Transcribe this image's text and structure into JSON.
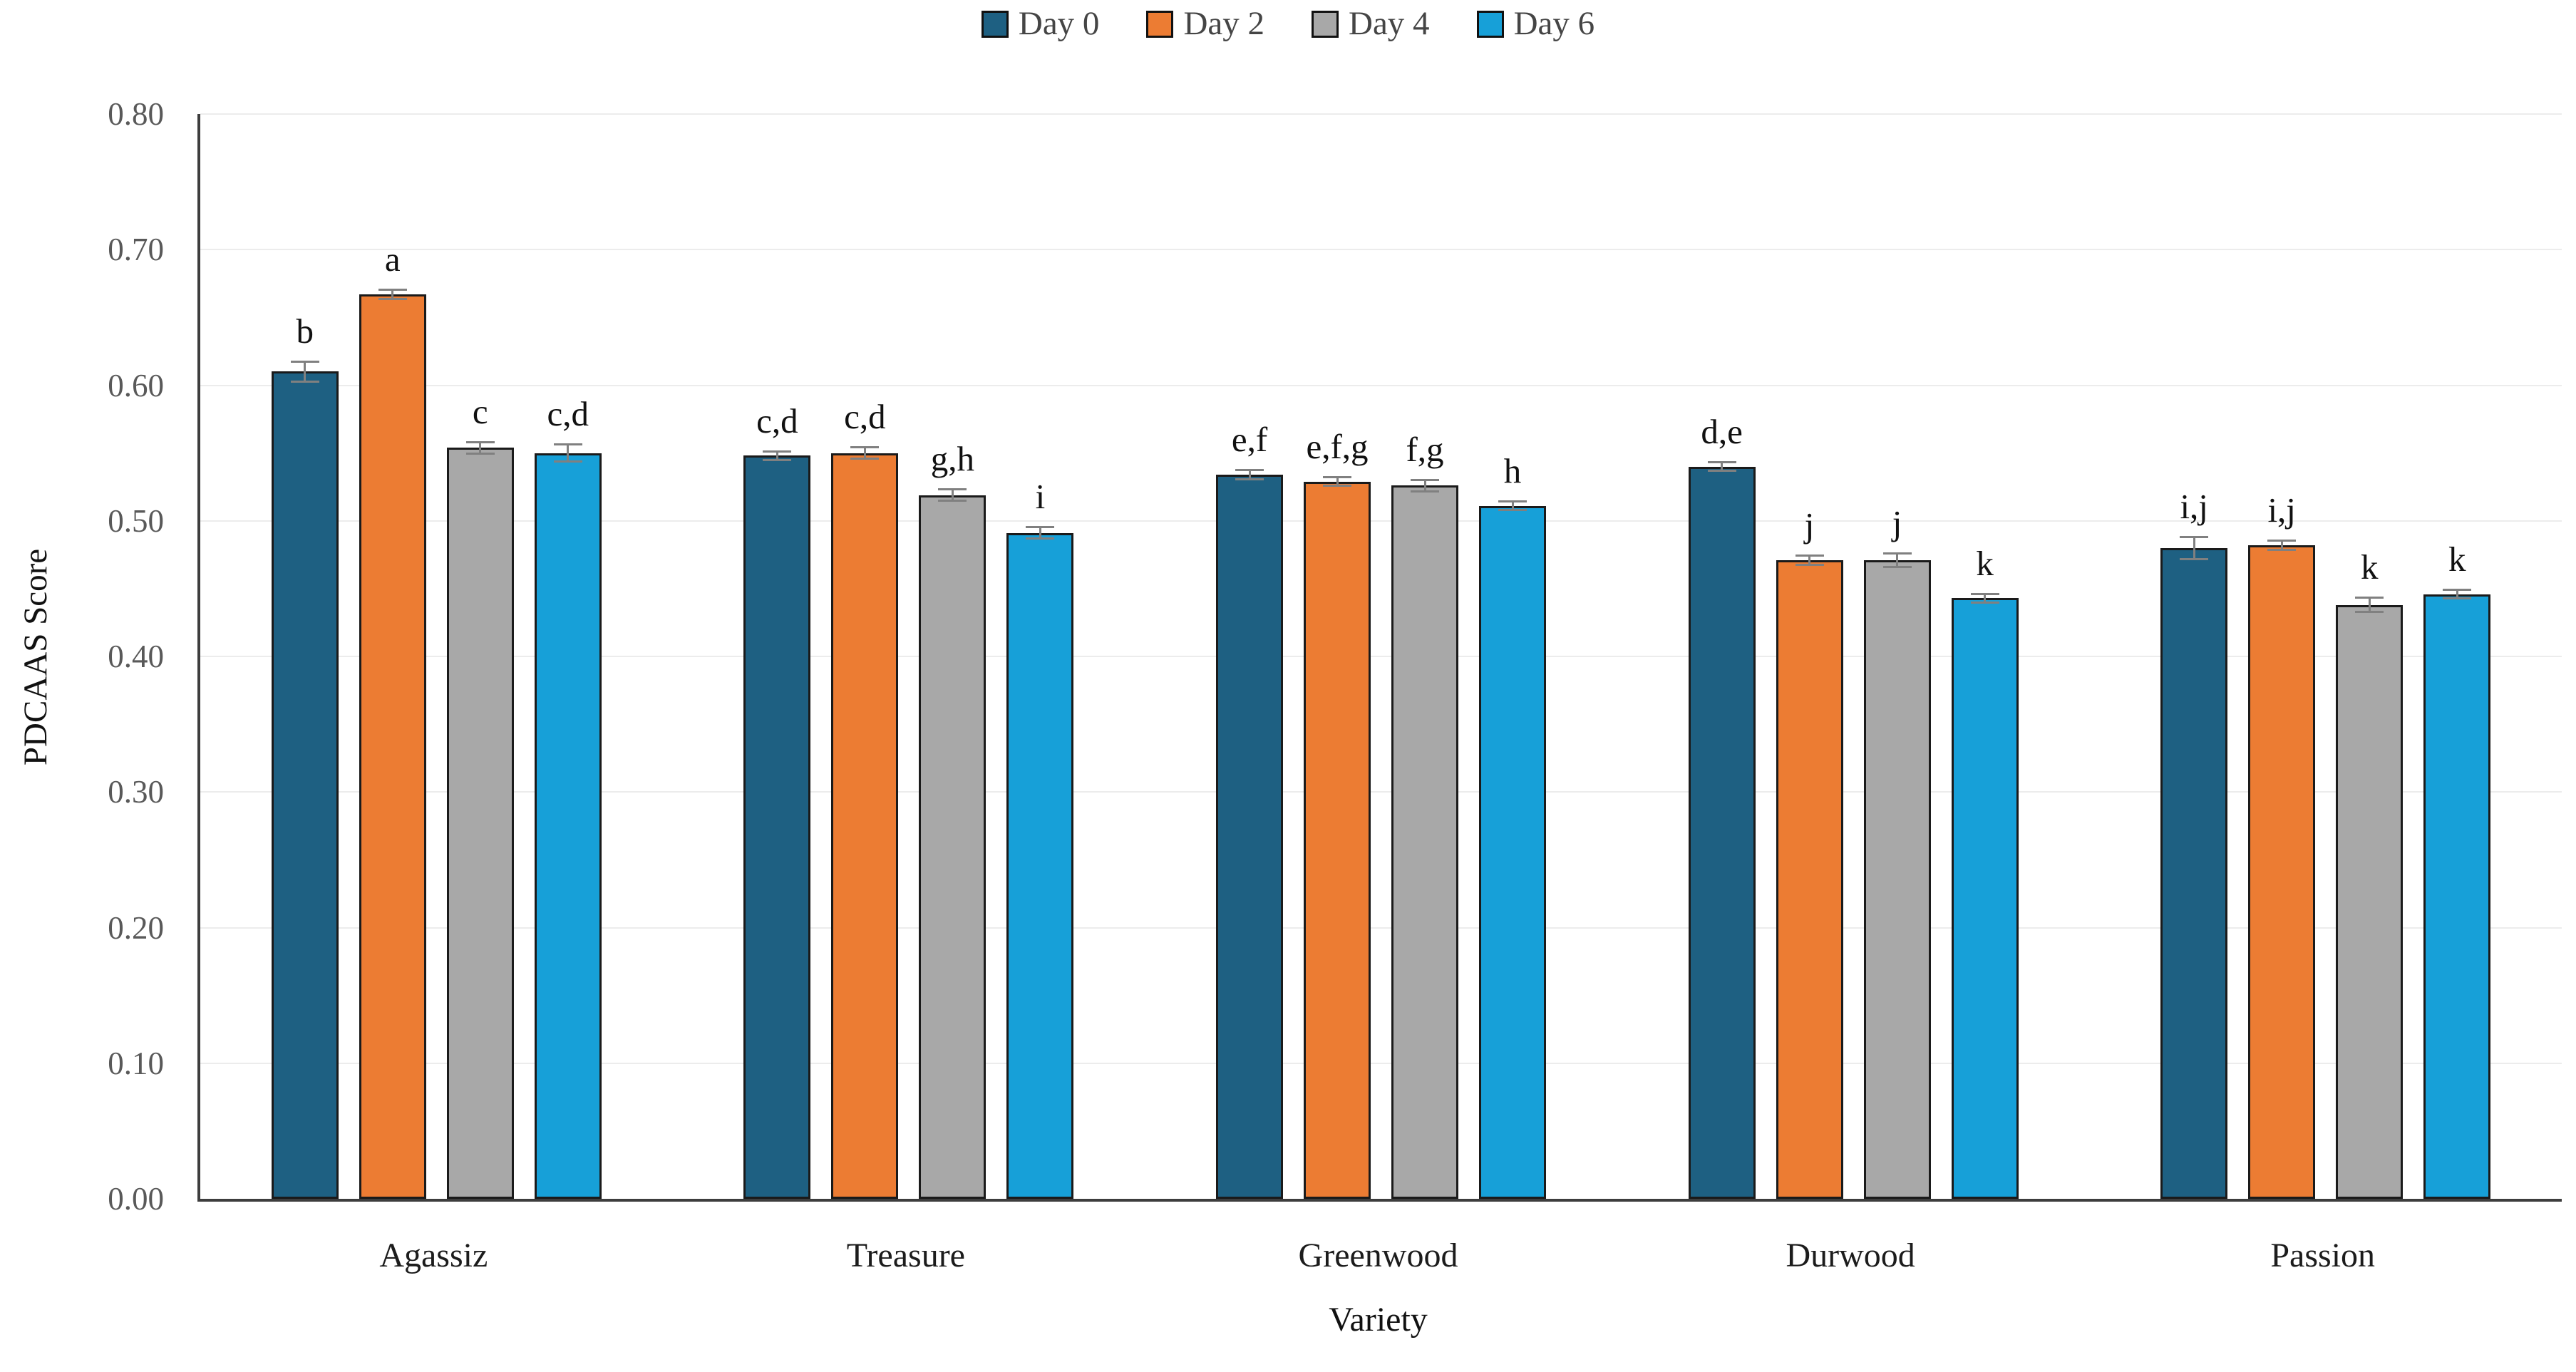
{
  "chart_data": {
    "type": "bar",
    "title": "",
    "xlabel": "Variety",
    "ylabel": "PDCAAS Score",
    "ylim": [
      0,
      0.8
    ],
    "ytick_labels": [
      "0.00",
      "0.10",
      "0.20",
      "0.30",
      "0.40",
      "0.50",
      "0.60",
      "0.70",
      "0.80"
    ],
    "ytick_values": [
      0,
      0.1,
      0.2,
      0.3,
      0.4,
      0.5,
      0.6,
      0.7,
      0.8
    ],
    "grid": "horizontal",
    "legend_position": "top",
    "categories": [
      "Agassiz",
      "Treasure",
      "Greenwood",
      "Durwood",
      "Passion"
    ],
    "series": [
      {
        "name": "Day 0",
        "color": "#1E6082",
        "values": [
          0.61,
          0.548,
          0.534,
          0.54,
          0.48
        ],
        "errors": [
          0.008,
          0.004,
          0.004,
          0.004,
          0.009
        ],
        "sig_labels": [
          "b",
          "c,d",
          "e,f",
          "d,e",
          "i,j"
        ]
      },
      {
        "name": "Day 2",
        "color": "#EC7C33",
        "values": [
          0.667,
          0.55,
          0.529,
          0.471,
          0.482
        ],
        "errors": [
          0.004,
          0.005,
          0.004,
          0.004,
          0.004
        ],
        "sig_labels": [
          "a",
          "c,d",
          "e,f,g",
          "j",
          "i,j"
        ]
      },
      {
        "name": "Day 4",
        "color": "#A8A8A8",
        "values": [
          0.554,
          0.519,
          0.526,
          0.471,
          0.438
        ],
        "errors": [
          0.005,
          0.005,
          0.005,
          0.006,
          0.006
        ],
        "sig_labels": [
          "c",
          "g,h",
          "f,g",
          "j",
          "k"
        ]
      },
      {
        "name": "Day 6",
        "color": "#17A0D8",
        "values": [
          0.55,
          0.491,
          0.511,
          0.443,
          0.446
        ],
        "errors": [
          0.007,
          0.005,
          0.004,
          0.004,
          0.004
        ],
        "sig_labels": [
          "c,d",
          "i",
          "h",
          "k",
          "k"
        ]
      }
    ],
    "colors": {
      "bar_outline": "#1A1A1A",
      "error_bar": "#808080",
      "axis_line": "#3D3D3D",
      "gridline": "#ECECEC",
      "tick_text": "#595959",
      "legend_text": "#454545"
    }
  }
}
